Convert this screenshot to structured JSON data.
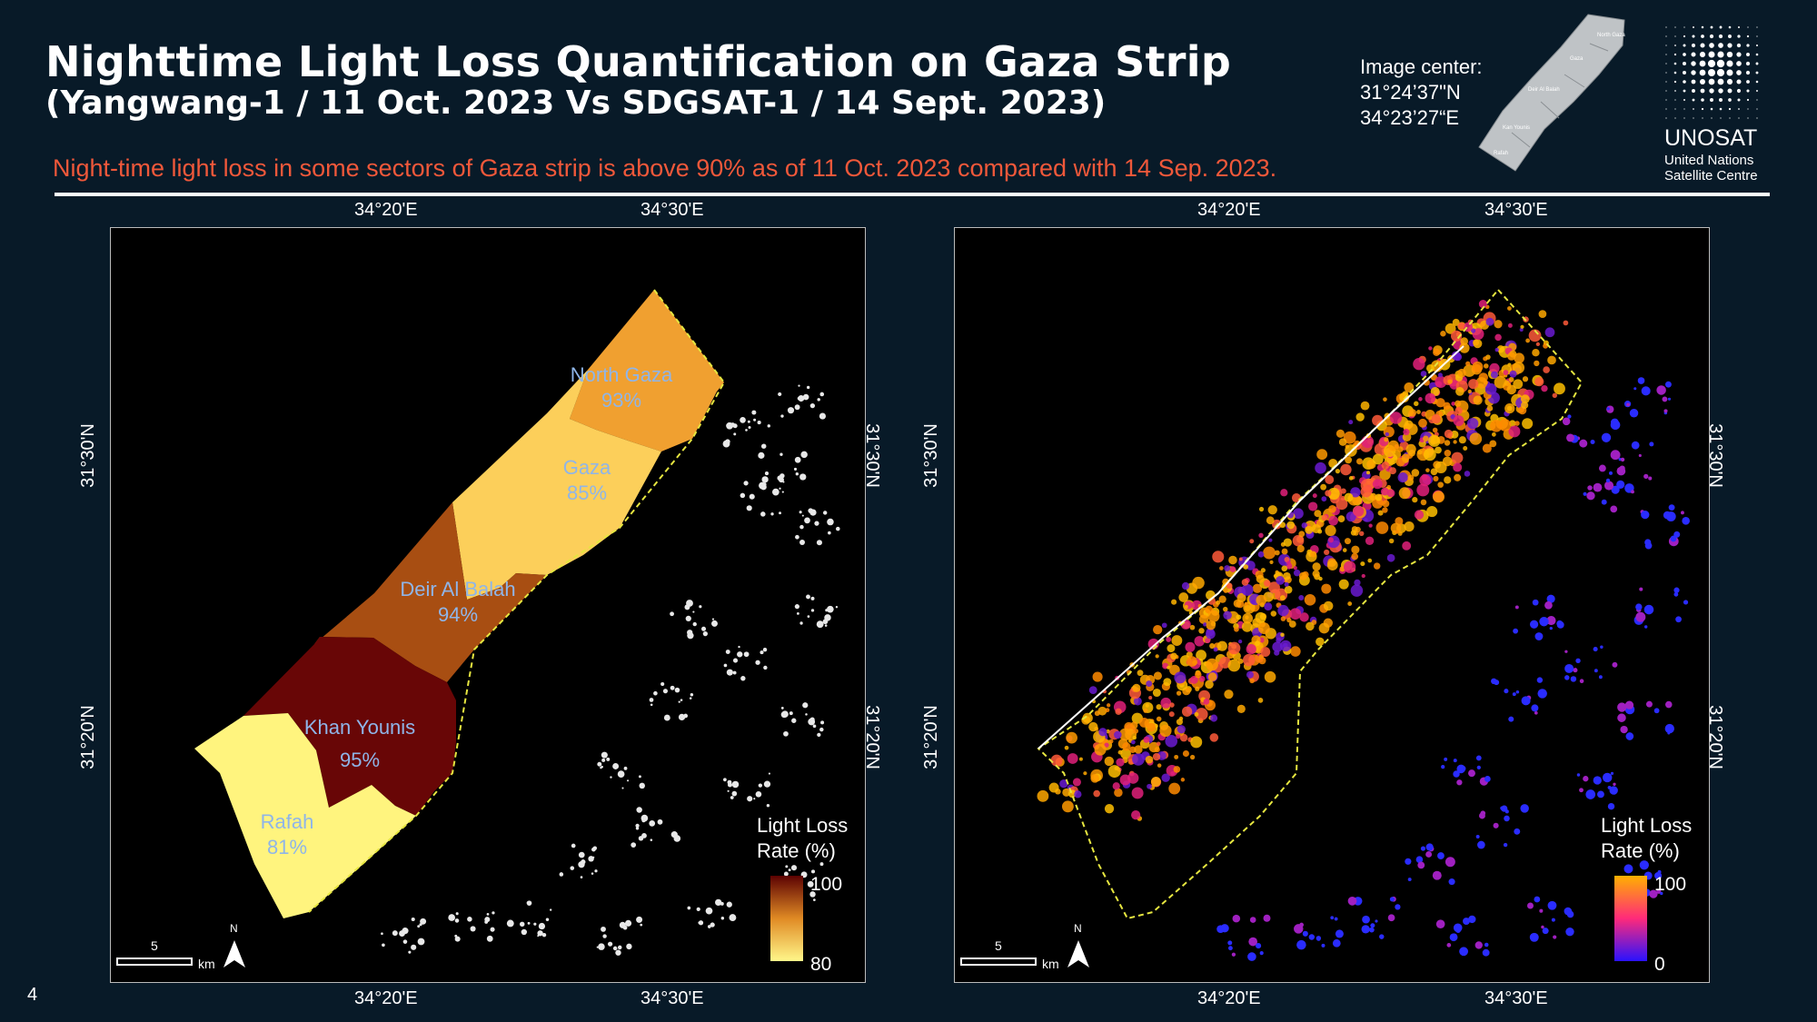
{
  "header": {
    "title": "Nighttime Light Loss Quantification on Gaza Strip",
    "subtitle": "(Yangwang-1 / 11 Oct. 2023 Vs SDGSAT-1 / 14 Sept. 2023)",
    "headline": "Night-time light loss in some sectors of Gaza strip is above 90% as of 11 Oct. 2023 compared with 14 Sep. 2023.",
    "image_center_label": "Image center:",
    "image_center_lat": "31°24’37\"N",
    "image_center_lon": "34°23’27“E"
  },
  "locator_map": {
    "labels": [
      "North Gaza",
      "Gaza",
      "Deir Al Balah",
      "Kan Younis",
      "Rafah"
    ]
  },
  "logo": {
    "name": "UNOSAT",
    "line1": "United Nations",
    "line2": "Satellite Centre"
  },
  "page_number": "4",
  "maps": {
    "coords": {
      "lon_west": "34°20'E",
      "lon_east": "34°30'E",
      "lat_north": "31°30'N",
      "lat_south": "31°20'N"
    },
    "scale_bar": {
      "value": "5",
      "unit": "km"
    },
    "north_label": "N",
    "left": {
      "regions": [
        {
          "name": "North Gaza",
          "percent": "93%",
          "light_loss": 93,
          "color": "#f0a030"
        },
        {
          "name": "Gaza",
          "percent": "85%",
          "light_loss": 85,
          "color": "#fccf5a"
        },
        {
          "name": "Deir Al Balah",
          "percent": "94%",
          "light_loss": 94,
          "color": "#a84e12"
        },
        {
          "name": "Khan Younis",
          "percent": "95%",
          "light_loss": 95,
          "color": "#680606"
        },
        {
          "name": "Rafah",
          "percent": "81%",
          "light_loss": 81,
          "color": "#fff47e"
        }
      ],
      "legend": {
        "title_line1": "Light Loss",
        "title_line2": "Rate (%)",
        "max": "100",
        "min": "80",
        "color_top": "#5c0202",
        "color_mid": "#e08a24",
        "color_bottom": "#fff78a"
      }
    },
    "right": {
      "legend": {
        "title_line1": "Light Loss",
        "title_line2": "Rate (%)",
        "max": "100",
        "min": "0",
        "color_top": "#ffb000",
        "color_mid": "#ff2a7a",
        "color_bottom": "#2a12ff"
      }
    }
  },
  "colors": {
    "background": "#081a28",
    "headline": "#f0583a",
    "region_label": "#8fb5e8",
    "boundary": "#e6e640"
  }
}
